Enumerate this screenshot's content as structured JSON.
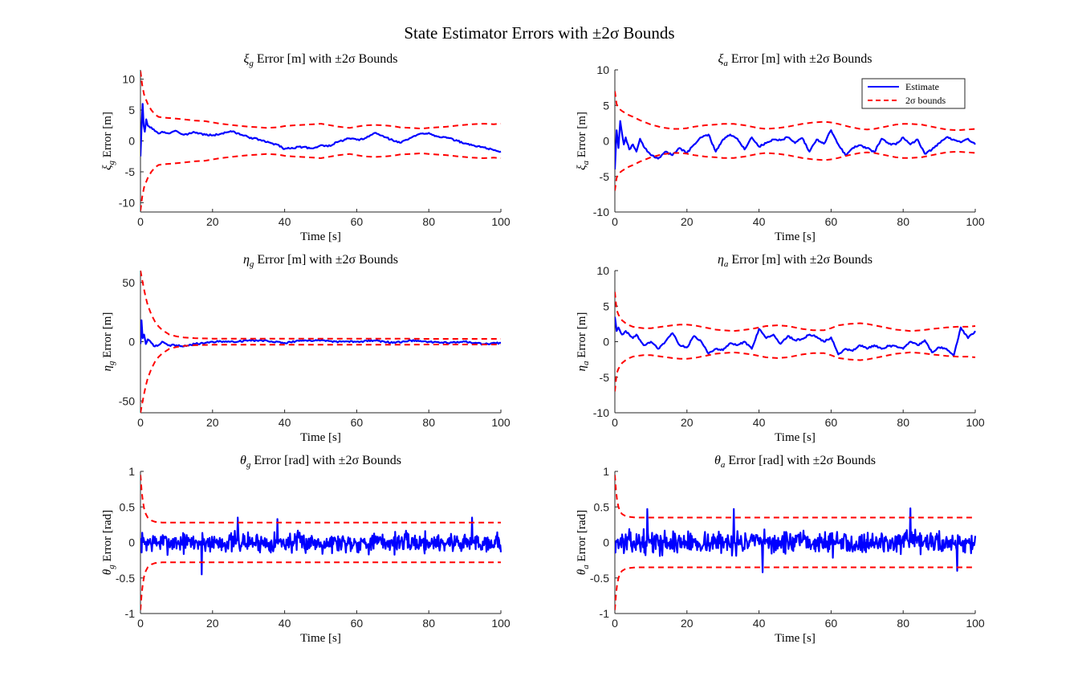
{
  "figure_title": "State Estimator Errors with ±2σ Bounds",
  "colors": {
    "estimate": "#0000ff",
    "bounds": "#ff0000",
    "axis": "#262626"
  },
  "chart_data": [
    {
      "id": "xi_g",
      "type": "line",
      "title_var": "ξ",
      "title_sub": "g",
      "title_rest": " Error [m] with ±2σ Bounds",
      "xlabel": "Time [s]",
      "ylabel_var": "ξ",
      "ylabel_sub": "g",
      "ylabel_rest": " Error [m]",
      "xlim": [
        0,
        100
      ],
      "ylim": [
        -11.5,
        11.5
      ],
      "xticks": [
        0,
        20,
        40,
        60,
        80,
        100
      ],
      "yticks": [
        -10,
        -5,
        0,
        5,
        10
      ],
      "grid": false,
      "legend": null,
      "estimate": {
        "x": [
          0,
          0.3,
          0.6,
          0.9,
          1.2,
          1.6,
          2,
          3,
          4,
          5,
          6,
          8,
          10,
          12,
          15,
          18,
          20,
          22,
          25,
          28,
          30,
          33,
          35,
          38,
          40,
          42,
          45,
          48,
          50,
          52,
          55,
          58,
          60,
          62,
          65,
          68,
          70,
          72,
          75,
          78,
          80,
          82,
          85,
          88,
          90,
          92,
          95,
          98,
          100
        ],
        "y": [
          -2.5,
          2,
          6,
          2.5,
          1.5,
          3.5,
          2.5,
          2.2,
          1.6,
          1.2,
          1.5,
          1.2,
          1.6,
          1.0,
          1.4,
          1.0,
          0.9,
          1.1,
          1.6,
          1.0,
          0.6,
          0.2,
          -0.2,
          -0.6,
          -1.3,
          -1.1,
          -1.0,
          -1.2,
          -0.7,
          -0.9,
          -0.1,
          0.4,
          0.2,
          0.3,
          1.3,
          0.6,
          0.1,
          -0.3,
          0.5,
          1.2,
          1.3,
          0.8,
          0.5,
          0.0,
          -0.4,
          -0.7,
          -1.0,
          -1.5,
          -1.7
        ]
      },
      "bounds": {
        "x": [
          0,
          0.5,
          1,
          2,
          3,
          4,
          5,
          6,
          8,
          10,
          12,
          15,
          18,
          20,
          22,
          25,
          28,
          30,
          33,
          35,
          38,
          40,
          42,
          45,
          48,
          50,
          52,
          55,
          58,
          60,
          62,
          65,
          68,
          70,
          72,
          75,
          78,
          80,
          82,
          85,
          88,
          90,
          92,
          95,
          98,
          100
        ],
        "y": [
          11.3,
          9.0,
          7.5,
          6.0,
          5.0,
          4.3,
          3.9,
          3.8,
          3.7,
          3.6,
          3.5,
          3.3,
          3.2,
          3.0,
          2.8,
          2.6,
          2.4,
          2.3,
          2.2,
          2.1,
          2.2,
          2.4,
          2.5,
          2.6,
          2.7,
          2.8,
          2.6,
          2.3,
          2.1,
          2.3,
          2.5,
          2.6,
          2.5,
          2.4,
          2.2,
          2.1,
          2.0,
          2.1,
          2.2,
          2.3,
          2.5,
          2.6,
          2.7,
          2.8,
          2.7,
          2.8
        ]
      }
    },
    {
      "id": "xi_a",
      "type": "line",
      "title_var": "ξ",
      "title_sub": "a",
      "title_rest": " Error [m] with ±2σ Bounds",
      "xlabel": "Time [s]",
      "ylabel_var": "ξ",
      "ylabel_sub": "a",
      "ylabel_rest": " Error [m]",
      "xlim": [
        0,
        100
      ],
      "ylim": [
        -10,
        10
      ],
      "xticks": [
        0,
        20,
        40,
        60,
        80,
        100
      ],
      "yticks": [
        -10,
        -5,
        0,
        5,
        10
      ],
      "grid": false,
      "legend": {
        "position": "top-right",
        "entries": [
          "Estimate",
          "2σ bounds"
        ]
      },
      "estimate": {
        "x": [
          0,
          0.5,
          1,
          1.5,
          2,
          2.5,
          3,
          4,
          5,
          6,
          7,
          8,
          10,
          12,
          14,
          16,
          18,
          20,
          22,
          24,
          26,
          28,
          30,
          32,
          34,
          36,
          38,
          40,
          42,
          44,
          46,
          48,
          50,
          52,
          54,
          56,
          58,
          60,
          62,
          64,
          66,
          68,
          70,
          72,
          74,
          76,
          78,
          80,
          82,
          84,
          86,
          88,
          90,
          92,
          94,
          96,
          98,
          100
        ],
        "y": [
          -4,
          1.5,
          -1,
          2.8,
          1.0,
          -0.5,
          0.5,
          -1.2,
          -0.5,
          -1.5,
          0.3,
          -0.8,
          -2.0,
          -2.5,
          -1.5,
          -2.0,
          -1.0,
          -1.7,
          -0.5,
          0.5,
          0.9,
          -1.5,
          0.2,
          0.9,
          0.3,
          -1.2,
          0.5,
          -0.8,
          -0.3,
          0.2,
          0.1,
          0.5,
          -0.3,
          0.4,
          -1.5,
          0.2,
          -0.4,
          1.5,
          -0.5,
          -2.0,
          -1.0,
          -0.6,
          -1.0,
          -1.6,
          0.3,
          -0.4,
          -0.5,
          0.5,
          -0.5,
          0.2,
          -1.8,
          -1.2,
          -0.3,
          0.5,
          0.2,
          -0.2,
          0.3,
          -0.5
        ]
      },
      "bounds": {
        "x": [
          0,
          0.5,
          1,
          2,
          3,
          4,
          5,
          7,
          10,
          13,
          16,
          18,
          20,
          22,
          25,
          28,
          30,
          33,
          36,
          38,
          40,
          42,
          45,
          48,
          50,
          52,
          55,
          58,
          60,
          62,
          65,
          68,
          70,
          72,
          75,
          78,
          80,
          82,
          85,
          88,
          90,
          92,
          95,
          98,
          100
        ],
        "y": [
          7,
          5.2,
          4.6,
          4.2,
          3.9,
          3.6,
          3.4,
          2.9,
          2.3,
          1.9,
          1.7,
          1.7,
          1.8,
          2.0,
          2.2,
          2.3,
          2.4,
          2.4,
          2.2,
          2.0,
          1.8,
          1.7,
          1.8,
          2.0,
          2.2,
          2.4,
          2.6,
          2.7,
          2.6,
          2.4,
          2.0,
          1.7,
          1.6,
          1.7,
          2.0,
          2.3,
          2.4,
          2.4,
          2.3,
          2.0,
          1.8,
          1.6,
          1.5,
          1.6,
          1.7
        ]
      }
    },
    {
      "id": "eta_g",
      "type": "line",
      "title_var": "η",
      "title_sub": "g",
      "title_rest": " Error [m] with ±2σ Bounds",
      "xlabel": "Time [s]",
      "ylabel_var": "η",
      "ylabel_sub": "g",
      "ylabel_rest": " Error [m]",
      "xlim": [
        0,
        100
      ],
      "ylim": [
        -60,
        60
      ],
      "xticks": [
        0,
        20,
        40,
        60,
        80,
        100
      ],
      "yticks": [
        -50,
        0,
        50
      ],
      "grid": false,
      "legend": null,
      "estimate": {
        "x": [
          0,
          0.3,
          0.6,
          1,
          1.5,
          2,
          3,
          4,
          5,
          6,
          8,
          10,
          12,
          15,
          18,
          20,
          25,
          30,
          35,
          40,
          45,
          50,
          55,
          60,
          65,
          70,
          75,
          80,
          85,
          90,
          95,
          100
        ],
        "y": [
          -2,
          18,
          3,
          6,
          -2,
          2,
          -1,
          -4,
          -3,
          0,
          -3,
          -3,
          -4,
          -2,
          -1,
          0,
          0,
          1,
          1,
          -1,
          1,
          1,
          0,
          0,
          1,
          -1,
          1,
          0,
          -1,
          0,
          -2,
          -1
        ]
      },
      "bounds": {
        "x": [
          0,
          0.5,
          1,
          1.5,
          2,
          3,
          4,
          5,
          6,
          8,
          10,
          12,
          15,
          20,
          25,
          30,
          35,
          40,
          45,
          50,
          55,
          60,
          65,
          70,
          75,
          80,
          85,
          90,
          95,
          100
        ],
        "y": [
          60,
          52,
          44,
          37,
          31,
          23,
          17,
          13,
          10,
          6,
          4.5,
          3.6,
          3.0,
          2.6,
          2.5,
          2.5,
          2.5,
          2.6,
          2.6,
          2.6,
          2.5,
          2.5,
          2.5,
          2.5,
          2.5,
          2.4,
          2.4,
          2.4,
          2.4,
          2.4
        ]
      }
    },
    {
      "id": "eta_a",
      "type": "line",
      "title_var": "η",
      "title_sub": "a",
      "title_rest": " Error [m] with ±2σ Bounds",
      "xlabel": "Time [s]",
      "ylabel_var": "η",
      "ylabel_sub": "a",
      "ylabel_rest": " Error [m]",
      "xlim": [
        0,
        100
      ],
      "ylim": [
        -10,
        10
      ],
      "xticks": [
        0,
        20,
        40,
        60,
        80,
        100
      ],
      "yticks": [
        -10,
        -5,
        0,
        5,
        10
      ],
      "grid": false,
      "legend": null,
      "estimate": {
        "x": [
          0,
          0.5,
          1,
          2,
          3,
          4,
          5,
          6,
          8,
          10,
          12,
          14,
          16,
          18,
          20,
          22,
          24,
          26,
          28,
          30,
          32,
          34,
          36,
          38,
          40,
          42,
          44,
          46,
          48,
          50,
          52,
          54,
          56,
          58,
          60,
          62,
          64,
          66,
          68,
          70,
          72,
          74,
          76,
          78,
          80,
          82,
          84,
          86,
          88,
          90,
          92,
          94,
          96,
          98,
          100
        ],
        "y": [
          3.5,
          1.5,
          2.0,
          1.0,
          1.5,
          1.0,
          0.5,
          1.0,
          -0.5,
          0.0,
          -1.0,
          0.0,
          1.2,
          -0.5,
          -0.8,
          0.8,
          0.0,
          -1.7,
          -1.0,
          -1.2,
          -0.2,
          -0.5,
          0.0,
          -1.0,
          1.8,
          0.5,
          1.0,
          -0.3,
          0.8,
          0.2,
          0.4,
          1.0,
          0.7,
          0.0,
          0.6,
          -1.8,
          -1.0,
          -1.3,
          -0.5,
          -1.0,
          -0.5,
          -1.0,
          -0.6,
          -0.6,
          -1.0,
          0.0,
          -0.5,
          0.2,
          -1.5,
          -0.8,
          -1.0,
          -2.0,
          2.0,
          0.5,
          1.5
        ]
      },
      "bounds": {
        "x": [
          0,
          0.5,
          1,
          2,
          3,
          4,
          5,
          6,
          8,
          10,
          13,
          16,
          18,
          20,
          22,
          25,
          28,
          30,
          33,
          35,
          38,
          40,
          42,
          45,
          48,
          50,
          52,
          55,
          58,
          60,
          62,
          65,
          68,
          70,
          72,
          75,
          78,
          80,
          82,
          85,
          88,
          90,
          92,
          95,
          98,
          100
        ],
        "y": [
          7,
          4.5,
          3.8,
          3.0,
          2.6,
          2.3,
          2.1,
          2.0,
          1.9,
          1.9,
          2.1,
          2.3,
          2.4,
          2.4,
          2.3,
          2.0,
          1.7,
          1.6,
          1.5,
          1.6,
          1.8,
          2.0,
          2.2,
          2.3,
          2.2,
          2.0,
          1.8,
          1.6,
          1.6,
          1.9,
          2.3,
          2.5,
          2.6,
          2.5,
          2.3,
          2.0,
          1.7,
          1.6,
          1.5,
          1.6,
          1.8,
          1.9,
          2.0,
          2.1,
          2.1,
          2.2
        ]
      }
    },
    {
      "id": "theta_g",
      "type": "line",
      "title_var": "θ",
      "title_sub": "g",
      "title_rest": " Error [rad] with ±2σ Bounds",
      "xlabel": "Time [s]",
      "ylabel_var": "θ",
      "ylabel_sub": "g",
      "ylabel_rest": " Error [rad]",
      "xlim": [
        0,
        100
      ],
      "ylim": [
        -1,
        1
      ],
      "xticks": [
        0,
        20,
        40,
        60,
        80,
        100
      ],
      "yticks": [
        -1,
        -0.5,
        0,
        0.5,
        1
      ],
      "grid": false,
      "legend": null,
      "estimate": {
        "generated": true,
        "n": 600,
        "amplitude": 0.13,
        "spike_at": [
          17,
          27,
          38,
          92
        ],
        "spike": [
          -0.45,
          0.35,
          0.33,
          0.35
        ],
        "seed": 7
      },
      "bounds": {
        "x": [
          0,
          0.3,
          0.6,
          1,
          1.5,
          2,
          3,
          4,
          5,
          6,
          8,
          10,
          15,
          20,
          30,
          40,
          50,
          60,
          70,
          80,
          90,
          100
        ],
        "y": [
          0.95,
          0.75,
          0.6,
          0.48,
          0.4,
          0.35,
          0.31,
          0.29,
          0.285,
          0.28,
          0.28,
          0.28,
          0.28,
          0.28,
          0.28,
          0.28,
          0.28,
          0.28,
          0.28,
          0.28,
          0.28,
          0.28
        ]
      }
    },
    {
      "id": "theta_a",
      "type": "line",
      "title_var": "θ",
      "title_sub": "a",
      "title_rest": " Error [rad] with ±2σ Bounds",
      "xlabel": "Time [s]",
      "ylabel_var": "θ",
      "ylabel_sub": "a",
      "ylabel_rest": " Error [rad]",
      "xlim": [
        0,
        100
      ],
      "ylim": [
        -1,
        1
      ],
      "xticks": [
        0,
        20,
        40,
        60,
        80,
        100
      ],
      "yticks": [
        -1,
        -0.5,
        0,
        0.5,
        1
      ],
      "grid": false,
      "legend": null,
      "estimate": {
        "generated": true,
        "n": 600,
        "amplitude": 0.14,
        "spike_at": [
          9,
          33,
          41,
          82,
          95
        ],
        "spike": [
          0.47,
          0.47,
          -0.42,
          0.48,
          -0.4
        ],
        "seed": 13
      },
      "bounds": {
        "x": [
          0,
          0.3,
          0.6,
          1,
          1.5,
          2,
          3,
          4,
          5,
          6,
          8,
          10,
          15,
          20,
          30,
          40,
          50,
          60,
          70,
          80,
          90,
          100
        ],
        "y": [
          0.95,
          0.75,
          0.6,
          0.5,
          0.43,
          0.4,
          0.37,
          0.36,
          0.355,
          0.35,
          0.35,
          0.35,
          0.35,
          0.35,
          0.35,
          0.35,
          0.35,
          0.35,
          0.35,
          0.35,
          0.35,
          0.35
        ]
      }
    }
  ]
}
